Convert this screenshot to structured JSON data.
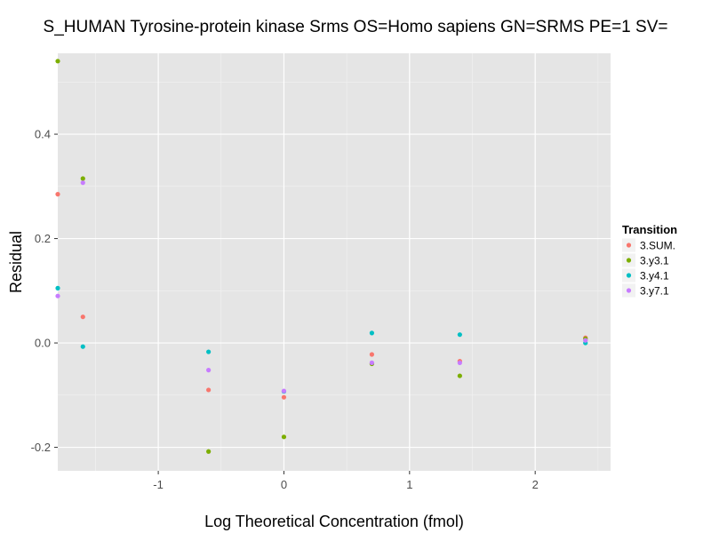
{
  "chart_data": {
    "type": "scatter",
    "title": "S_HUMAN Tyrosine-protein kinase Srms OS=Homo sapiens GN=SRMS PE=1 SV=",
    "xlabel": "Log Theoretical Concentration (fmol)",
    "ylabel": "Residual",
    "xlim": [
      -1.8,
      2.6
    ],
    "ylim": [
      -0.245,
      0.555
    ],
    "x_ticks": [
      -1,
      0,
      1,
      2
    ],
    "x_tick_labels": [
      "-1",
      "0",
      "1",
      "2"
    ],
    "y_ticks": [
      -0.2,
      0.0,
      0.2,
      0.4
    ],
    "y_tick_labels": [
      "-0.2",
      "0.0",
      "0.2",
      "0.4"
    ],
    "grid": true,
    "legend": {
      "title": "Transition",
      "position": "right"
    },
    "series": [
      {
        "name": "3.SUM.",
        "color": "#F8766D",
        "points": [
          [
            -1.8,
            0.285
          ],
          [
            -1.6,
            0.05
          ],
          [
            -0.6,
            -0.09
          ],
          [
            0,
            -0.104
          ],
          [
            0.7,
            -0.022
          ],
          [
            1.4,
            -0.035
          ],
          [
            2.4,
            0.01
          ]
        ]
      },
      {
        "name": "3.y3.1",
        "color": "#7CAE00",
        "points": [
          [
            -1.8,
            0.54
          ],
          [
            -1.6,
            0.315
          ],
          [
            -0.6,
            -0.208
          ],
          [
            0,
            -0.18
          ],
          [
            0.7,
            -0.04
          ],
          [
            1.4,
            -0.063
          ],
          [
            2.4,
            0.008
          ]
        ]
      },
      {
        "name": "3.y4.1",
        "color": "#00BFC4",
        "points": [
          [
            -1.8,
            0.105
          ],
          [
            -1.6,
            -0.007
          ],
          [
            -0.6,
            -0.017
          ],
          [
            0,
            -0.093
          ],
          [
            0.7,
            0.019
          ],
          [
            1.4,
            0.016
          ],
          [
            2.4,
            0.0
          ]
        ]
      },
      {
        "name": "3.y7.1",
        "color": "#C77CFF",
        "points": [
          [
            -1.8,
            0.09
          ],
          [
            -1.6,
            0.307
          ],
          [
            -0.6,
            -0.052
          ],
          [
            0,
            -0.092
          ],
          [
            0.7,
            -0.038
          ],
          [
            1.4,
            -0.038
          ],
          [
            2.4,
            0.005
          ]
        ]
      }
    ]
  }
}
